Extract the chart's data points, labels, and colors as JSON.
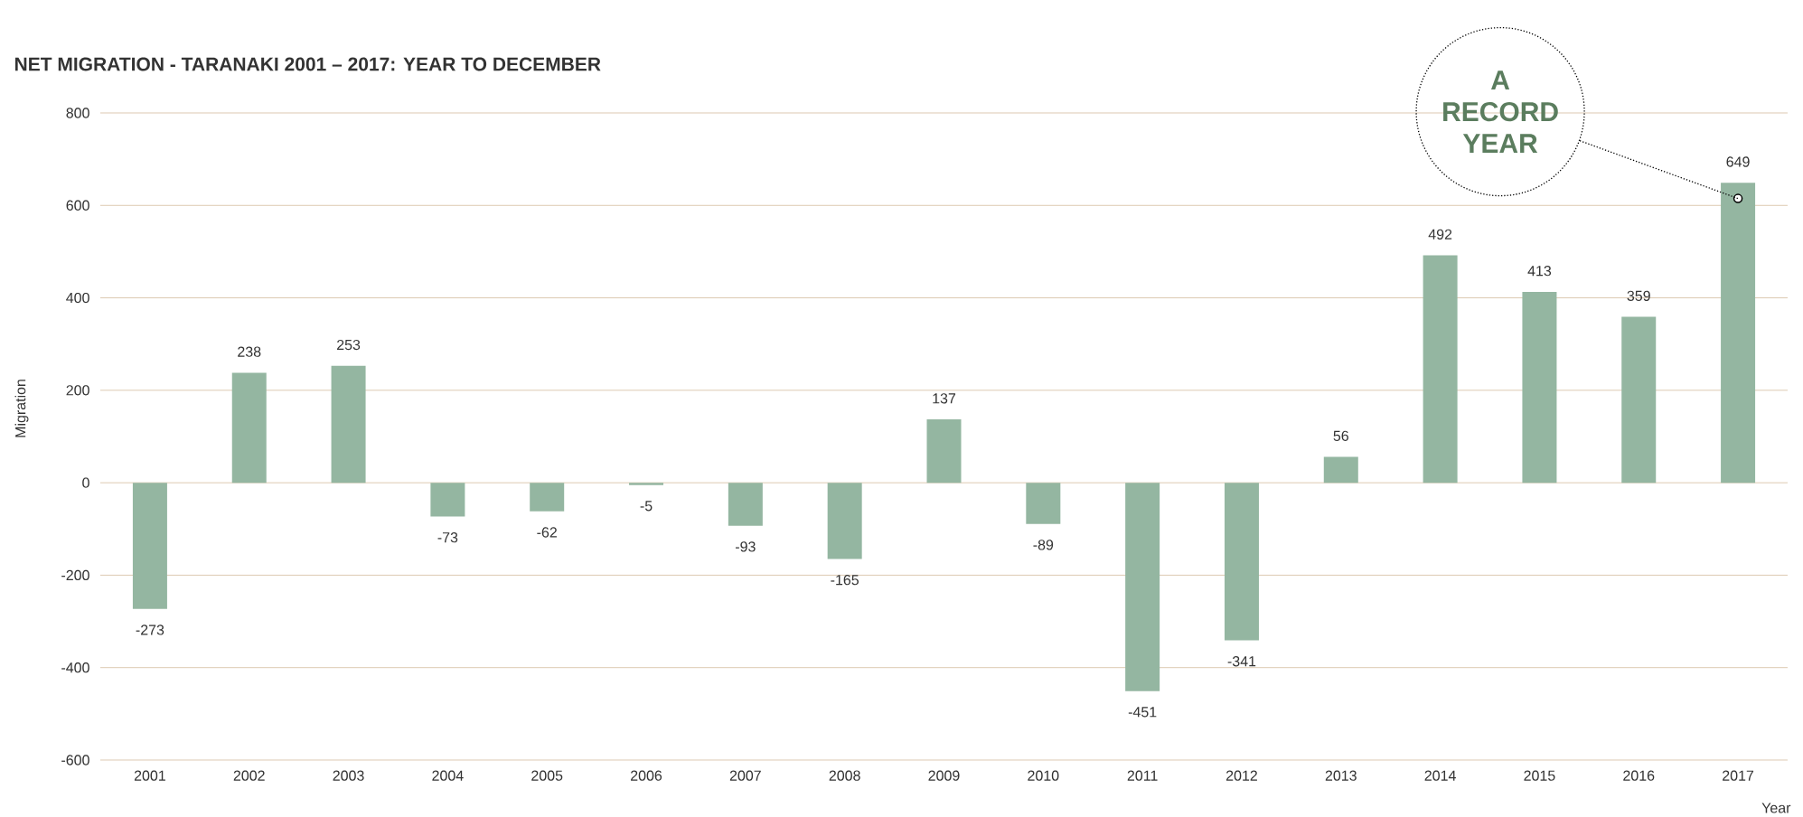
{
  "chart_data": {
    "type": "bar",
    "title": "NET MIGRATION - TARANAKI 2001 – 2017: YEAR TO DECEMBER",
    "xlabel": "Year",
    "ylabel": "Migration",
    "categories": [
      "2001",
      "2002",
      "2003",
      "2004",
      "2005",
      "2006",
      "2007",
      "2008",
      "2009",
      "2010",
      "2011",
      "2012",
      "2013",
      "2014",
      "2015",
      "2016",
      "2017"
    ],
    "values": [
      -273,
      238,
      253,
      -73,
      -62,
      -5,
      -93,
      -165,
      137,
      -89,
      -451,
      -341,
      56,
      492,
      413,
      359,
      649
    ],
    "color": "#94b6a1",
    "ylim": [
      -600,
      800
    ],
    "yticks": [
      -600,
      -400,
      -200,
      0,
      200,
      400,
      600,
      800
    ],
    "grid": "y",
    "data_labels": true,
    "annotations": [
      {
        "text": "A RECORD YEAR",
        "x": "2017",
        "y": 615
      }
    ]
  }
}
